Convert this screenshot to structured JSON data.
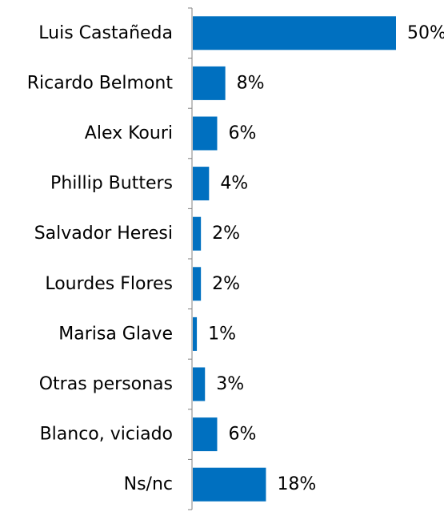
{
  "chart_data": {
    "type": "bar",
    "orientation": "horizontal",
    "categories": [
      "Luis Castañeda",
      "Ricardo Belmont",
      "Alex Kouri",
      "Phillip Butters",
      "Salvador Heresi",
      "Lourdes Flores",
      "Marisa Glave",
      "Otras personas",
      "Blanco, viciado",
      "Ns/nc"
    ],
    "values": [
      50,
      8,
      6,
      4,
      2,
      2,
      1,
      3,
      6,
      18
    ],
    "value_labels": [
      "50%",
      "8%",
      "6%",
      "4%",
      "2%",
      "2%",
      "1%",
      "3%",
      "6%",
      "18%"
    ],
    "title": "",
    "xlabel": "",
    "ylabel": "",
    "xlim": [
      0,
      50
    ],
    "grid": false,
    "legend": "none",
    "bar_color": "#0070C0",
    "axis_color": "#808080"
  }
}
